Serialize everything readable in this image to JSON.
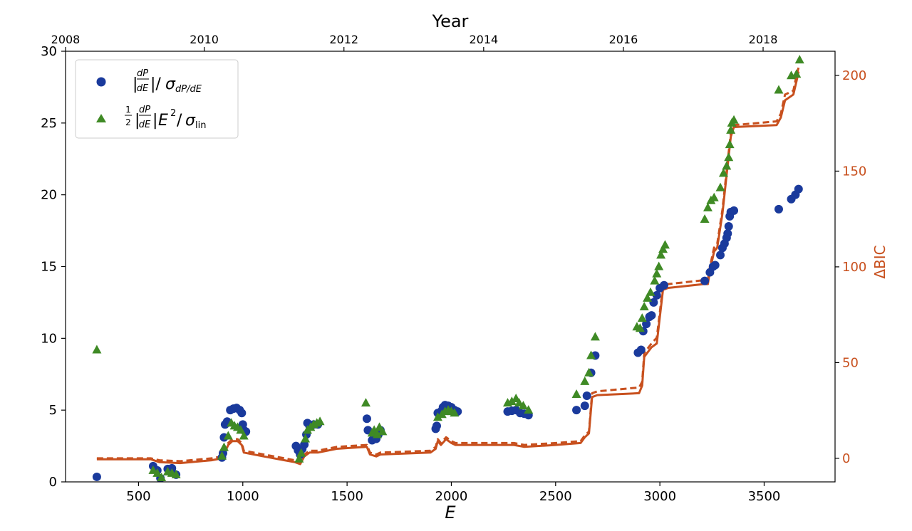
{
  "chart_data": {
    "type": "scatter",
    "xlabel": "E",
    "ylabel": "",
    "top_xlabel": "Year",
    "right_ylabel": "ΔBIC",
    "xlim": [
      150,
      3840
    ],
    "ylim": [
      0,
      30
    ],
    "y2lim": [
      -12.3,
      212.6
    ],
    "x_ticks": [
      500,
      1000,
      1500,
      2000,
      2500,
      3000,
      3500
    ],
    "y_ticks": [
      0,
      5,
      10,
      15,
      20,
      25,
      30
    ],
    "y2_ticks": [
      0,
      50,
      100,
      150,
      200
    ],
    "top_ticks": [
      {
        "label": "2008",
        "E": 150
      },
      {
        "label": "2010",
        "E": 815
      },
      {
        "label": "2012",
        "E": 1485
      },
      {
        "label": "2014",
        "E": 2155
      },
      {
        "label": "2016",
        "E": 2825
      },
      {
        "label": "2018",
        "E": 3495
      }
    ],
    "grid": false,
    "legend_position": "top-left",
    "colors": {
      "circle": "#1a3a9c",
      "triangle": "#3f8a25",
      "bic": "#c8501e",
      "axis": "#000000"
    },
    "series": [
      {
        "name": "|dP/dE|/σ_dP/dE",
        "marker": "circle",
        "axis": "left",
        "points": [
          [
            300,
            0.35
          ],
          [
            570,
            1.1
          ],
          [
            590,
            0.8
          ],
          [
            605,
            0.25
          ],
          [
            640,
            0.9
          ],
          [
            660,
            0.95
          ],
          [
            680,
            0.5
          ],
          [
            900,
            1.7
          ],
          [
            905,
            2.0
          ],
          [
            910,
            3.1
          ],
          [
            915,
            4.0
          ],
          [
            925,
            4.2
          ],
          [
            940,
            5.0
          ],
          [
            955,
            5.1
          ],
          [
            970,
            5.15
          ],
          [
            985,
            5.0
          ],
          [
            995,
            4.8
          ],
          [
            1000,
            4.0
          ],
          [
            1005,
            3.6
          ],
          [
            1015,
            3.5
          ],
          [
            1255,
            2.5
          ],
          [
            1265,
            2.2
          ],
          [
            1275,
            1.9
          ],
          [
            1285,
            2.3
          ],
          [
            1295,
            2.6
          ],
          [
            1305,
            3.3
          ],
          [
            1310,
            4.1
          ],
          [
            1320,
            3.9
          ],
          [
            1340,
            4.0
          ],
          [
            1360,
            4.0
          ],
          [
            1595,
            4.4
          ],
          [
            1600,
            3.6
          ],
          [
            1620,
            2.9
          ],
          [
            1630,
            3.2
          ],
          [
            1640,
            3.0
          ],
          [
            1650,
            3.3
          ],
          [
            1660,
            3.6
          ],
          [
            1925,
            3.7
          ],
          [
            1930,
            3.9
          ],
          [
            1935,
            4.8
          ],
          [
            1950,
            4.9
          ],
          [
            1960,
            5.2
          ],
          [
            1970,
            5.35
          ],
          [
            1985,
            5.3
          ],
          [
            2000,
            5.2
          ],
          [
            2015,
            5.0
          ],
          [
            2030,
            4.9
          ],
          [
            2270,
            4.9
          ],
          [
            2290,
            4.95
          ],
          [
            2310,
            5.0
          ],
          [
            2330,
            4.8
          ],
          [
            2350,
            4.75
          ],
          [
            2370,
            4.65
          ],
          [
            2600,
            5.0
          ],
          [
            2640,
            5.3
          ],
          [
            2650,
            6.0
          ],
          [
            2670,
            7.6
          ],
          [
            2690,
            8.8
          ],
          [
            2895,
            9.0
          ],
          [
            2910,
            9.2
          ],
          [
            2920,
            10.5
          ],
          [
            2935,
            11.0
          ],
          [
            2950,
            11.5
          ],
          [
            2960,
            11.6
          ],
          [
            2970,
            12.5
          ],
          [
            2985,
            13.0
          ],
          [
            3000,
            13.5
          ],
          [
            3020,
            13.7
          ],
          [
            3215,
            14.0
          ],
          [
            3240,
            14.6
          ],
          [
            3255,
            15.0
          ],
          [
            3265,
            15.1
          ],
          [
            3290,
            15.8
          ],
          [
            3300,
            16.3
          ],
          [
            3310,
            16.6
          ],
          [
            3320,
            17.0
          ],
          [
            3325,
            17.3
          ],
          [
            3330,
            17.8
          ],
          [
            3335,
            18.5
          ],
          [
            3340,
            18.8
          ],
          [
            3355,
            18.9
          ],
          [
            3570,
            19.0
          ],
          [
            3630,
            19.7
          ],
          [
            3650,
            20.0
          ],
          [
            3665,
            20.4
          ]
        ]
      },
      {
        "name": "1/2 |dP/dE| E^2/σ_lin",
        "marker": "triangle",
        "axis": "left",
        "points": [
          [
            300,
            9.2
          ],
          [
            570,
            0.8
          ],
          [
            590,
            0.6
          ],
          [
            610,
            0.3
          ],
          [
            640,
            0.7
          ],
          [
            660,
            0.6
          ],
          [
            680,
            0.5
          ],
          [
            900,
            1.8
          ],
          [
            910,
            2.4
          ],
          [
            930,
            3.2
          ],
          [
            945,
            4.1
          ],
          [
            960,
            3.9
          ],
          [
            975,
            3.8
          ],
          [
            990,
            3.6
          ],
          [
            1005,
            3.2
          ],
          [
            1270,
            1.6
          ],
          [
            1280,
            2.0
          ],
          [
            1300,
            3.0
          ],
          [
            1310,
            3.6
          ],
          [
            1325,
            3.8
          ],
          [
            1340,
            4.0
          ],
          [
            1355,
            4.1
          ],
          [
            1370,
            4.2
          ],
          [
            1590,
            5.5
          ],
          [
            1620,
            3.4
          ],
          [
            1630,
            3.6
          ],
          [
            1645,
            3.3
          ],
          [
            1655,
            3.8
          ],
          [
            1670,
            3.5
          ],
          [
            1935,
            4.5
          ],
          [
            1955,
            4.7
          ],
          [
            1970,
            4.9
          ],
          [
            1985,
            5.0
          ],
          [
            2000,
            4.9
          ],
          [
            2015,
            4.8
          ],
          [
            2270,
            5.5
          ],
          [
            2290,
            5.6
          ],
          [
            2310,
            5.8
          ],
          [
            2325,
            5.5
          ],
          [
            2345,
            5.3
          ],
          [
            2370,
            5.0
          ],
          [
            2600,
            6.1
          ],
          [
            2640,
            7.0
          ],
          [
            2660,
            7.6
          ],
          [
            2670,
            8.8
          ],
          [
            2690,
            10.1
          ],
          [
            2890,
            10.8
          ],
          [
            2905,
            10.7
          ],
          [
            2915,
            11.4
          ],
          [
            2925,
            12.2
          ],
          [
            2940,
            12.8
          ],
          [
            2955,
            13.2
          ],
          [
            2975,
            14.0
          ],
          [
            2985,
            14.5
          ],
          [
            2995,
            15.0
          ],
          [
            3005,
            15.8
          ],
          [
            3015,
            16.2
          ],
          [
            3025,
            16.5
          ],
          [
            3215,
            18.3
          ],
          [
            3230,
            19.1
          ],
          [
            3245,
            19.6
          ],
          [
            3260,
            19.8
          ],
          [
            3290,
            20.5
          ],
          [
            3305,
            21.5
          ],
          [
            3320,
            22.0
          ],
          [
            3330,
            22.6
          ],
          [
            3335,
            23.5
          ],
          [
            3340,
            24.5
          ],
          [
            3345,
            25.0
          ],
          [
            3355,
            25.2
          ],
          [
            3570,
            27.3
          ],
          [
            3630,
            28.3
          ],
          [
            3655,
            28.4
          ],
          [
            3670,
            29.4
          ]
        ]
      },
      {
        "name": "ΔBIC",
        "marker": "line-dashed",
        "axis": "right",
        "points": [
          [
            300,
            0
          ],
          [
            560,
            0
          ],
          [
            600,
            -1
          ],
          [
            700,
            -1.5
          ],
          [
            850,
            0
          ],
          [
            900,
            1
          ],
          [
            910,
            3
          ],
          [
            930,
            8
          ],
          [
            950,
            10
          ],
          [
            975,
            10
          ],
          [
            995,
            8
          ],
          [
            1005,
            4
          ],
          [
            1100,
            2
          ],
          [
            1200,
            0
          ],
          [
            1250,
            -1
          ],
          [
            1275,
            -2
          ],
          [
            1295,
            2
          ],
          [
            1320,
            4
          ],
          [
            1360,
            4
          ],
          [
            1450,
            6
          ],
          [
            1595,
            7
          ],
          [
            1610,
            3
          ],
          [
            1640,
            2
          ],
          [
            1660,
            3
          ],
          [
            1900,
            4
          ],
          [
            1925,
            6
          ],
          [
            1935,
            10
          ],
          [
            1950,
            8
          ],
          [
            1975,
            11
          ],
          [
            2000,
            9
          ],
          [
            2020,
            8
          ],
          [
            2100,
            8
          ],
          [
            2300,
            8
          ],
          [
            2350,
            7
          ],
          [
            2500,
            8
          ],
          [
            2620,
            9
          ],
          [
            2640,
            12
          ],
          [
            2660,
            14
          ],
          [
            2675,
            34
          ],
          [
            2700,
            35
          ],
          [
            2900,
            37
          ],
          [
            2915,
            40
          ],
          [
            2925,
            55
          ],
          [
            2960,
            60
          ],
          [
            2985,
            63
          ],
          [
            3015,
            90
          ],
          [
            3040,
            91
          ],
          [
            3210,
            93
          ],
          [
            3230,
            93
          ],
          [
            3240,
            100
          ],
          [
            3260,
            110
          ],
          [
            3275,
            112
          ],
          [
            3300,
            130
          ],
          [
            3320,
            150
          ],
          [
            3340,
            170
          ],
          [
            3355,
            174
          ],
          [
            3560,
            176
          ],
          [
            3580,
            180
          ],
          [
            3600,
            190
          ],
          [
            3640,
            192
          ],
          [
            3655,
            200
          ],
          [
            3665,
            204
          ]
        ]
      },
      {
        "name": "ΔBIC",
        "marker": "line-solid",
        "axis": "right",
        "points": [
          [
            300,
            -0.5
          ],
          [
            560,
            -0.5
          ],
          [
            600,
            -2
          ],
          [
            700,
            -2.5
          ],
          [
            850,
            -1
          ],
          [
            900,
            0
          ],
          [
            910,
            2
          ],
          [
            930,
            7
          ],
          [
            950,
            9
          ],
          [
            975,
            9
          ],
          [
            995,
            7
          ],
          [
            1005,
            3
          ],
          [
            1100,
            1
          ],
          [
            1200,
            -1
          ],
          [
            1250,
            -2
          ],
          [
            1275,
            -3
          ],
          [
            1295,
            1
          ],
          [
            1320,
            3
          ],
          [
            1360,
            3
          ],
          [
            1450,
            5
          ],
          [
            1595,
            6
          ],
          [
            1610,
            2
          ],
          [
            1640,
            1
          ],
          [
            1660,
            2
          ],
          [
            1900,
            3
          ],
          [
            1925,
            5
          ],
          [
            1935,
            9
          ],
          [
            1950,
            7
          ],
          [
            1975,
            10
          ],
          [
            2000,
            8
          ],
          [
            2020,
            7
          ],
          [
            2100,
            7
          ],
          [
            2300,
            7
          ],
          [
            2350,
            6
          ],
          [
            2500,
            7
          ],
          [
            2620,
            8
          ],
          [
            2640,
            11
          ],
          [
            2660,
            13
          ],
          [
            2675,
            32
          ],
          [
            2700,
            33
          ],
          [
            2900,
            34
          ],
          [
            2915,
            38
          ],
          [
            2925,
            53
          ],
          [
            2960,
            58
          ],
          [
            2985,
            60
          ],
          [
            3015,
            88
          ],
          [
            3040,
            89
          ],
          [
            3210,
            91
          ],
          [
            3230,
            91
          ],
          [
            3240,
            98
          ],
          [
            3260,
            108
          ],
          [
            3275,
            110
          ],
          [
            3300,
            128
          ],
          [
            3320,
            148
          ],
          [
            3340,
            168
          ],
          [
            3355,
            173
          ],
          [
            3560,
            174
          ],
          [
            3580,
            178
          ],
          [
            3600,
            187
          ],
          [
            3640,
            190
          ],
          [
            3655,
            197
          ],
          [
            3665,
            202
          ]
        ]
      }
    ]
  }
}
